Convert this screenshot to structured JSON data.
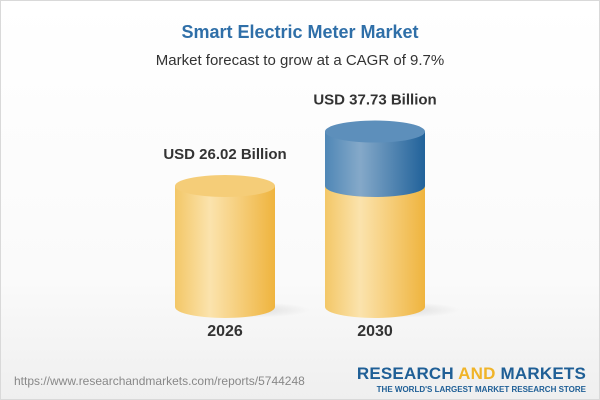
{
  "title": "Smart Electric Meter Market",
  "subtitle": "Market forecast to grow at a CAGR of 9.7%",
  "chart_data": {
    "type": "bar",
    "style": "3d-cylinder",
    "categories": [
      "2026",
      "2030"
    ],
    "values": [
      26.02,
      37.73
    ],
    "data_labels": [
      "USD 26.02 Billion",
      "USD 37.73 Billion"
    ],
    "unit": "USD Billion",
    "cagr": "9.7%",
    "colors": {
      "base": "#f2c35c",
      "growth": "#3d78ad"
    }
  },
  "footer": {
    "url": "https://www.researchandmarkets.com/reports/5744248",
    "logo_part1": "RESEARCH ",
    "logo_part2": "AND",
    "logo_part3": " MARKETS",
    "tagline": "THE WORLD'S LARGEST MARKET RESEARCH STORE"
  }
}
